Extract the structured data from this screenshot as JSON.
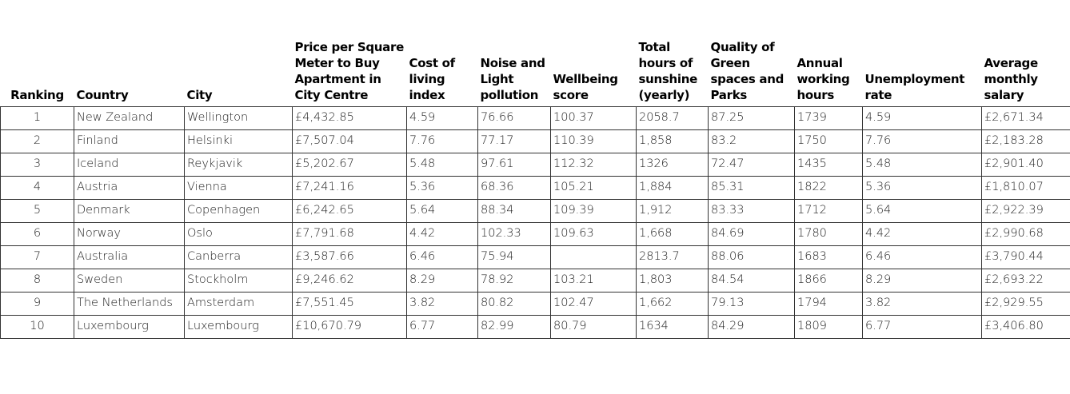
{
  "table": {
    "headers": [
      "Ranking",
      "Country",
      "City",
      "Price per Square Meter to Buy Apartment in City Centre",
      "Cost of living index",
      "Noise and Light pollution",
      "Wellbeing score",
      "Total hours of sunshine (yearly)",
      "Quality of Green spaces and Parks",
      "Annual working hours",
      "Unemployment rate",
      "Average monthly salary"
    ],
    "rows": [
      [
        "1",
        "New Zealand",
        "Wellington",
        "£4,432.85",
        "4.59",
        "76.66",
        "100.37",
        "2058.7",
        "87.25",
        "1739",
        "4.59",
        "£2,671.34"
      ],
      [
        "2",
        "Finland",
        "Helsinki",
        "£7,507.04",
        "7.76",
        "77.17",
        "110.39",
        "1,858",
        "83.2",
        "1750",
        "7.76",
        "£2,183.28"
      ],
      [
        "3",
        "Iceland",
        "Reykjavik",
        "£5,202.67",
        "5.48",
        "97.61",
        "112.32",
        "1326",
        "72.47",
        "1435",
        "5.48",
        "£2,901.40"
      ],
      [
        "4",
        "Austria",
        "Vienna",
        "£7,241.16",
        "5.36",
        "68.36",
        "105.21",
        "1,884",
        "85.31",
        "1822",
        "5.36",
        "£1,810.07"
      ],
      [
        "5",
        "Denmark",
        "Copenhagen",
        "£6,242.65",
        "5.64",
        "88.34",
        "109.39",
        "1,912",
        "83.33",
        "1712",
        "5.64",
        "£2,922.39"
      ],
      [
        "6",
        "Norway",
        "Oslo",
        "£7,791.68",
        "4.42",
        "102.33",
        "109.63",
        "1,668",
        "84.69",
        "1780",
        "4.42",
        "£2,990.68"
      ],
      [
        "7",
        "Australia",
        "Canberra",
        "£3,587.66",
        "6.46",
        "75.94",
        null,
        "2813.7",
        "88.06",
        "1683",
        "6.46",
        "£3,790.44"
      ],
      [
        "8",
        "Sweden",
        "Stockholm",
        "£9,246.62",
        "8.29",
        "78.92",
        "103.21",
        "1,803",
        "84.54",
        "1866",
        "8.29",
        "£2,693.22"
      ],
      [
        "9",
        "The Netherlands",
        "Amsterdam",
        "£7,551.45",
        "3.82",
        "80.82",
        "102.47",
        "1,662",
        "79.13",
        "1794",
        "3.82",
        "£2,929.55"
      ],
      [
        "10",
        "Luxembourg",
        "Luxembourg",
        "£10,670.79",
        "6.77",
        "82.99",
        "80.79",
        "1634",
        "84.29",
        "1809",
        "6.77",
        "£3,406.80"
      ]
    ]
  }
}
